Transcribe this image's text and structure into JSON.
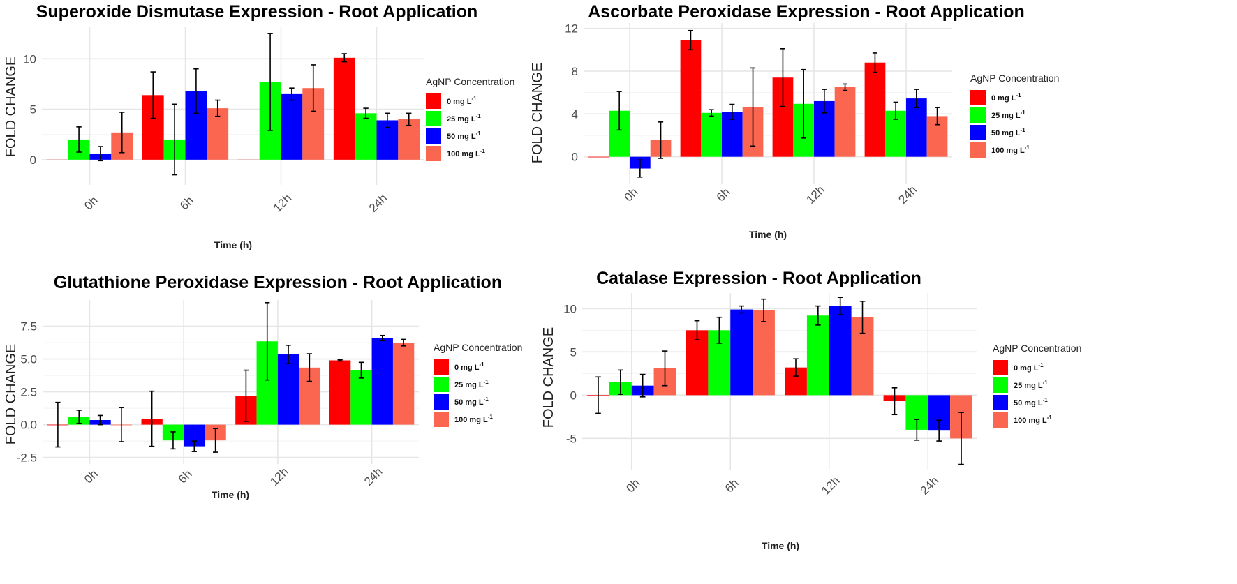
{
  "colors": {
    "c0": "#ff0000",
    "c25": "#00ff00",
    "c50": "#0000ff",
    "c100": "#fa6650"
  },
  "chart_data": [
    {
      "type": "bar",
      "title": "Superoxide Dismutase Expression - Root Application",
      "xlabel": "Time (h)",
      "ylabel": "FOLD CHANGE",
      "categories": [
        "0h",
        "6h",
        "12h",
        "24h"
      ],
      "ylim": [
        -2.5,
        13.2
      ],
      "yticks": [
        0,
        5,
        10
      ],
      "ytick_labels": [
        "0",
        "5",
        "10"
      ],
      "grid": true,
      "legend": {
        "title": "AgNP Concentration",
        "position": "right",
        "entries": [
          "0 mg L",
          "25 mg L",
          "50 mg L",
          "100 mg L"
        ],
        "sup": "-1"
      },
      "series": [
        {
          "name": "0 mg L⁻¹",
          "values": [
            0,
            6.4,
            0,
            10.1
          ],
          "errors": [
            0,
            2.3,
            0,
            0.4
          ]
        },
        {
          "name": "25 mg L⁻¹",
          "values": [
            2.0,
            2.0,
            7.7,
            4.6
          ],
          "errors": [
            1.25,
            3.5,
            4.8,
            0.5
          ]
        },
        {
          "name": "50 mg L⁻¹",
          "values": [
            0.6,
            6.8,
            6.5,
            3.9
          ],
          "errors": [
            0.7,
            2.2,
            0.6,
            0.7
          ]
        },
        {
          "name": "100 mg L⁻¹",
          "values": [
            2.7,
            5.1,
            7.1,
            4.0
          ],
          "errors": [
            2.0,
            0.8,
            2.3,
            0.6
          ]
        }
      ]
    },
    {
      "type": "bar",
      "title": "Ascorbate Peroxidase Expression - Root Application",
      "xlabel": "Time (h)",
      "ylabel": "FOLD CHANGE",
      "categories": [
        "0h",
        "6h",
        "12h",
        "24h"
      ],
      "ylim": [
        -2.5,
        12.5
      ],
      "yticks": [
        0,
        4,
        8,
        12
      ],
      "ytick_labels": [
        "0",
        "4",
        "8",
        "12"
      ],
      "grid": true,
      "legend": {
        "title": "AgNP Concentration",
        "position": "right",
        "entries": [
          "0 mg L",
          "25 mg L",
          "50 mg L",
          "100 mg L"
        ],
        "sup": "-1"
      },
      "series": [
        {
          "name": "0 mg L⁻¹",
          "values": [
            0,
            10.9,
            7.4,
            8.8
          ],
          "errors": [
            0,
            0.9,
            2.7,
            0.9
          ]
        },
        {
          "name": "25 mg L⁻¹",
          "values": [
            4.3,
            4.1,
            4.95,
            4.3
          ],
          "errors": [
            1.8,
            0.3,
            3.2,
            0.8
          ]
        },
        {
          "name": "50 mg L⁻¹",
          "values": [
            -1.1,
            4.2,
            5.2,
            5.45
          ],
          "errors": [
            0.8,
            0.7,
            1.1,
            0.85
          ]
        },
        {
          "name": "100 mg L⁻¹",
          "values": [
            1.55,
            4.65,
            6.5,
            3.8
          ],
          "errors": [
            1.7,
            3.65,
            0.3,
            0.8
          ]
        }
      ]
    },
    {
      "type": "bar",
      "title": "Glutathione Peroxidase Expression - Root Application",
      "xlabel": "Time (h)",
      "ylabel": "FOLD CHANGE",
      "categories": [
        "0h",
        "6h",
        "12h",
        "24h"
      ],
      "ylim": [
        -3.0,
        9.5
      ],
      "yticks": [
        -2.5,
        0,
        2.5,
        5,
        7.5
      ],
      "ytick_labels": [
        "-2.5",
        "0.0",
        "2.5",
        "5.0",
        "7.5"
      ],
      "grid": true,
      "legend": {
        "title": "AgNP Concentration",
        "position": "right",
        "entries": [
          "0 mg L",
          "25 mg L",
          "50 mg L",
          "100 mg L"
        ],
        "sup": "-1"
      },
      "series": [
        {
          "name": "0 mg L⁻¹",
          "values": [
            0,
            0.45,
            2.2,
            4.9
          ],
          "errors": [
            1.7,
            2.1,
            1.95,
            0.05
          ]
        },
        {
          "name": "25 mg L⁻¹",
          "values": [
            0.6,
            -1.2,
            6.35,
            4.15
          ],
          "errors": [
            0.5,
            0.65,
            2.95,
            0.6
          ]
        },
        {
          "name": "50 mg L⁻¹",
          "values": [
            0.35,
            -1.65,
            5.35,
            6.6
          ],
          "errors": [
            0.35,
            0.4,
            0.7,
            0.2
          ]
        },
        {
          "name": "100 mg L⁻¹",
          "values": [
            0,
            -1.2,
            4.35,
            6.25
          ],
          "errors": [
            1.3,
            0.9,
            1.05,
            0.25
          ]
        }
      ]
    },
    {
      "type": "bar",
      "title": "Catalase Expression - Root Application",
      "xlabel": "Time (h)",
      "ylabel": "FOLD CHANGE",
      "categories": [
        "0h",
        "6h",
        "12h",
        "24h"
      ],
      "ylim": [
        -8.6,
        11.8
      ],
      "yticks": [
        -5,
        0,
        5,
        10
      ],
      "ytick_labels": [
        "-5",
        "0",
        "5",
        "10"
      ],
      "grid": true,
      "legend": {
        "title": "AgNP Concentration",
        "position": "right",
        "entries": [
          "0 mg L",
          "25 mg L",
          "50 mg L",
          "100 mg L"
        ],
        "sup": "-1"
      },
      "series": [
        {
          "name": "0 mg L⁻¹",
          "values": [
            0,
            7.5,
            3.2,
            -0.7
          ],
          "errors": [
            2.1,
            1.1,
            1.0,
            1.55
          ]
        },
        {
          "name": "25 mg L⁻¹",
          "values": [
            1.5,
            7.5,
            9.2,
            -4.0
          ],
          "errors": [
            1.4,
            1.5,
            1.1,
            1.2
          ]
        },
        {
          "name": "50 mg L⁻¹",
          "values": [
            1.1,
            9.9,
            10.3,
            -4.1
          ],
          "errors": [
            1.3,
            0.4,
            1.0,
            1.2
          ]
        },
        {
          "name": "100 mg L⁻¹",
          "values": [
            3.1,
            9.8,
            9.0,
            -5.0
          ],
          "errors": [
            2.0,
            1.3,
            1.85,
            3.0
          ]
        }
      ]
    }
  ]
}
